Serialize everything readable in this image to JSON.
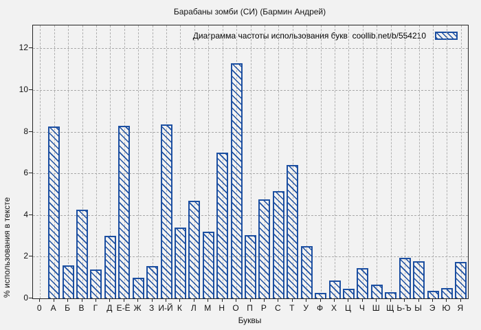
{
  "title": "Барабаны зомби (СИ) (Бармин Андрей)",
  "legend": {
    "label": "Диаграмма частоты использования букв  coollib.net/b/554210",
    "swatch": "blue-diagonal-hatch"
  },
  "colors": {
    "bar_blue": "#1c4fa1",
    "background": "#f2f2f2",
    "grid": "#a8a8a8",
    "frame": "#222222"
  },
  "chart_data": {
    "type": "bar",
    "title": "Барабаны зомби (СИ) (Бармин Андрей)",
    "legend_label": "Диаграмма частоты использования букв  coollib.net/b/554210",
    "xlabel": "Буквы",
    "ylabel": "% использования в тексте",
    "categories": [
      "0",
      "А",
      "Б",
      "В",
      "Г",
      "Д",
      "Е-Ё",
      "Ж",
      "З",
      "И-Й",
      "К",
      "Л",
      "М",
      "Н",
      "О",
      "П",
      "Р",
      "С",
      "Т",
      "У",
      "Ф",
      "Х",
      "Ц",
      "Ч",
      "Ш",
      "Щ",
      "Ь-Ъ",
      "Ы",
      "Э",
      "Ю",
      "Я"
    ],
    "values": [
      0,
      8.25,
      1.6,
      4.25,
      1.4,
      3.0,
      8.3,
      1.0,
      1.55,
      8.35,
      3.4,
      4.7,
      3.2,
      7.0,
      11.3,
      3.05,
      4.75,
      5.15,
      6.4,
      2.5,
      0.25,
      0.85,
      0.45,
      1.45,
      0.65,
      0.3,
      1.95,
      1.8,
      0.35,
      0.5,
      1.75
    ],
    "yticks": [
      0,
      2,
      4,
      6,
      8,
      10,
      12
    ],
    "ylim": [
      0,
      13.1
    ],
    "grid": true,
    "hatch": "diagonal-backslash",
    "legend_position": "top-right-inside"
  }
}
